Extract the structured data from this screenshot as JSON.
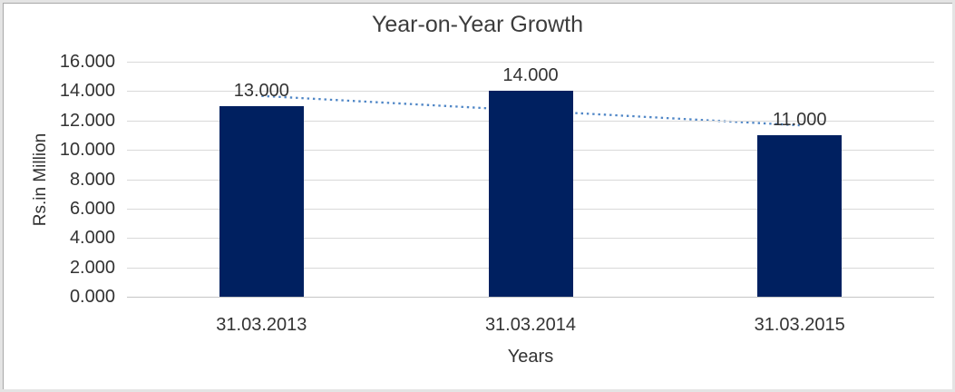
{
  "chart_data": {
    "type": "bar",
    "title": "Year-on-Year Growth",
    "categories": [
      "31.03.2013",
      "31.03.2014",
      "31.03.2015"
    ],
    "values": [
      13,
      14,
      11
    ],
    "data_labels": [
      "13.000",
      "14.000",
      "11.000"
    ],
    "xlabel": "Years",
    "ylabel": "Rs.in Million",
    "ylim": [
      0,
      16
    ],
    "ytick_step": 2,
    "ytick_labels": [
      "16.000",
      "14.000",
      "12.000",
      "10.000",
      "8.000",
      "6.000",
      "4.000",
      "2.000",
      "0.000"
    ],
    "grid": true,
    "legend": "none",
    "bar_color": "#002060",
    "gridline_color": "#d9d9d9",
    "axis_line_color": "#c6c6c6",
    "text_color": "#333333",
    "trendline": {
      "type": "linear",
      "style": "dotted",
      "color": "#4f86c6",
      "start_value": 13.67,
      "end_value": 11.67
    }
  }
}
